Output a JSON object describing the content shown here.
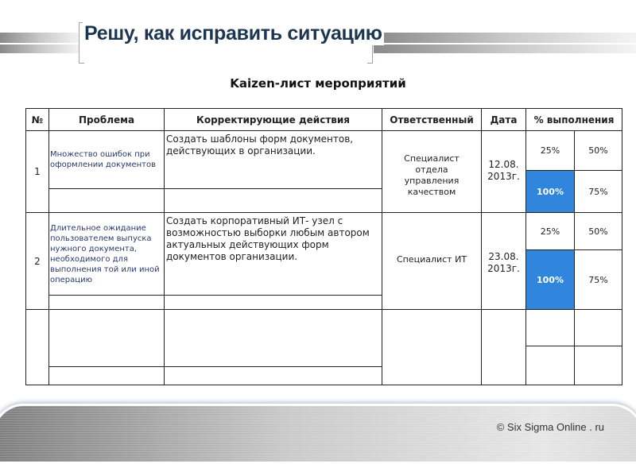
{
  "title": "Решу, как исправить ситуацию",
  "subtitle": "Kaizen-лист мероприятий",
  "table": {
    "headers": [
      "№",
      "Проблема",
      "Корректирующие действия",
      "Ответственный",
      "Дата",
      "% выполнения"
    ],
    "rows": [
      {
        "num": "1",
        "problem": "Множество ошибок при оформлении документов",
        "action": " Создать шаблоны форм документов, действующих в организации.",
        "responsible": "Специалист отдела управления качеством",
        "date": "12.08. 2013г.",
        "p25": "25%",
        "p50": "50%",
        "p100": "100%",
        "p75": "75%",
        "completion_percent": 100
      },
      {
        "num": "2",
        "problem": "Длительное ожидание пользователем выпуска нужного документа, необходимого для выполнения той или иной операцию",
        "action": " Создать корпоративный ИТ- узел с возможностью выборки любым автором актуальных действующих форм документов организации.",
        "responsible": "Специалист ИТ",
        "date": "23.08. 2013г.",
        "p25": "25%",
        "p50": "50%",
        "p100": "100%",
        "p75": "75%",
        "completion_percent": 100
      }
    ]
  },
  "colors": {
    "highlight": "#2f86dc",
    "title": "#1c3550"
  },
  "footer": {
    "copyright": "© Six Sigma Online . ru"
  }
}
